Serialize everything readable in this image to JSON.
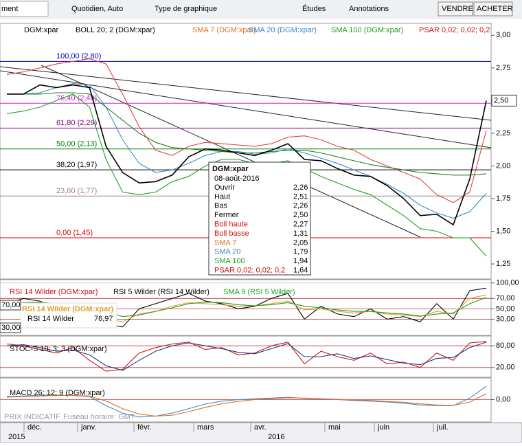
{
  "toolbar": {
    "search": "ment",
    "period": "Quotidien, Auto",
    "chart_type": "Type de graphique",
    "studies": "Études",
    "annotations": "Annotations",
    "sell": "VENDRE",
    "buy": "ACHETER"
  },
  "price_panel": {
    "legend": [
      {
        "text": "DGM:xpar",
        "color": "#000000"
      },
      {
        "text": "BOLL 20; 2 (DGM:xpar)",
        "color": "#000000"
      },
      {
        "text": "SMA 7 (DGM:xpar)",
        "color": "#e07020"
      },
      {
        "text": "SMA 20 (DGM:xpar)",
        "color": "#3a8ad0"
      },
      {
        "text": "SMA 100 (DGM:xpar)",
        "color": "#20a020"
      },
      {
        "text": "PSAR 0,02; 0,02; 0,2",
        "color": "#d01010"
      }
    ],
    "ylim": [
      1.14,
      3.07
    ],
    "yticks": [
      {
        "value": 3,
        "label": "3,00"
      },
      {
        "value": 2.75,
        "label": "2,75"
      },
      {
        "value": 2.5,
        "label": "2,50"
      },
      {
        "value": 2.25,
        "label": "2,25"
      },
      {
        "value": 2,
        "label": "2,00"
      },
      {
        "value": 1.75,
        "label": "1,75"
      },
      {
        "value": 1.5,
        "label": "1,50"
      },
      {
        "value": 1.25,
        "label": "1,25"
      }
    ],
    "last_price": {
      "value": 2.5,
      "label": "2,50"
    },
    "fib_levels": [
      {
        "label": "100,00 (2,80)",
        "value": 2.8,
        "color": "#0000c0"
      },
      {
        "label": "76,40 (2,48)",
        "value": 2.48,
        "color": "#d020d0"
      },
      {
        "label": "61,80 (2,29)",
        "value": 2.29,
        "color": "#800080"
      },
      {
        "label": "50,00 (2,13)",
        "value": 2.13,
        "color": "#008000"
      },
      {
        "label": "38,20 (1,97)",
        "value": 1.97,
        "color": "#000000"
      },
      {
        "label": "23,60 (1,77)",
        "value": 1.77,
        "color": "#a08080"
      },
      {
        "label": "0,00 (1,45)",
        "value": 1.45,
        "color": "#d00000"
      }
    ],
    "series": [
      {
        "color": "#e04040",
        "values": [
          2.7,
          2.72,
          2.75,
          2.78,
          2.8,
          2.82,
          2.78,
          2.55,
          2.3,
          2.12,
          2.08,
          2.15,
          2.18,
          2.17,
          2.16,
          2.15,
          2.17,
          2.22,
          2.23,
          2.2,
          2.15,
          2.12,
          2.05,
          2.0,
          1.95,
          1.9,
          1.78,
          1.72,
          1.8,
          2.27
        ]
      },
      {
        "color": "#20a020",
        "values": [
          2.4,
          2.42,
          2.45,
          2.5,
          2.55,
          2.45,
          2.05,
          1.8,
          1.78,
          1.8,
          1.88,
          1.92,
          2.0,
          2.05,
          2.05,
          2.02,
          2.02,
          2.04,
          1.98,
          1.92,
          1.87,
          1.82,
          1.78,
          1.7,
          1.62,
          1.52,
          1.5,
          1.45,
          1.45,
          1.31
        ]
      },
      {
        "color": "#3a8ad0",
        "values": [
          2.55,
          2.55,
          2.56,
          2.6,
          2.63,
          2.62,
          2.45,
          2.2,
          2.02,
          1.95,
          1.97,
          2.02,
          2.08,
          2.11,
          2.11,
          2.09,
          2.1,
          2.13,
          2.1,
          2.06,
          2.02,
          1.97,
          1.92,
          1.86,
          1.79,
          1.7,
          1.64,
          1.6,
          1.65,
          1.79
        ]
      },
      {
        "color": "#208020",
        "values": [
          2.55,
          2.55,
          2.55,
          2.56,
          2.56,
          2.55,
          2.45,
          2.35,
          2.25,
          2.18,
          2.14,
          2.13,
          2.12,
          2.11,
          2.1,
          2.1,
          2.11,
          2.12,
          2.12,
          2.1,
          2.07,
          2.04,
          2.01,
          1.99,
          1.97,
          1.95,
          1.94,
          1.93,
          1.93,
          1.94
        ]
      },
      {
        "color": "#000000",
        "values": [
          2.55,
          2.55,
          2.62,
          2.6,
          2.62,
          2.6,
          2.15,
          1.95,
          1.87,
          1.88,
          1.93,
          2.07,
          2.13,
          2.12,
          2.1,
          2.08,
          2.12,
          2.17,
          2.05,
          2.04,
          1.98,
          1.93,
          1.92,
          1.85,
          1.75,
          1.62,
          1.63,
          1.55,
          1.9,
          2.5
        ]
      }
    ]
  },
  "tooltip": {
    "title": "DGM:xpar",
    "date": "08-août-2016",
    "rows": [
      {
        "label": "Ouvrir",
        "value": "2,26",
        "color": "#000000"
      },
      {
        "label": "Haut",
        "value": "2,51",
        "color": "#000000"
      },
      {
        "label": "Bas",
        "value": "2,26",
        "color": "#000000"
      },
      {
        "label": "Fermer",
        "value": "2,50",
        "color": "#000000"
      },
      {
        "label": "Boll haute",
        "value": "2,27",
        "color": "#d01010"
      },
      {
        "label": "Boll basse",
        "value": "1,31",
        "color": "#d01010"
      },
      {
        "label": "SMA 7",
        "value": "2,05",
        "color": "#e07020"
      },
      {
        "label": "SMA 20",
        "value": "1,79",
        "color": "#3a8ad0"
      },
      {
        "label": "SMA 100",
        "value": "1,94",
        "color": "#20a020"
      },
      {
        "label": "PSAR 0,02; 0,02; 0,2",
        "value": "1,64",
        "color": "#d01010"
      }
    ]
  },
  "rsi_panel": {
    "legend": [
      {
        "text": "RSI 14 Wilder (DGM:xpar)",
        "color": "#d01010"
      },
      {
        "text": "RSI 5 Wilder (RSI 14 Wilder)",
        "color": "#000000"
      },
      {
        "text": "SMA 9 (RSI 5 Wilder)",
        "color": "#20a020"
      }
    ],
    "overlay": {
      "title": "RSI 14 Wilder (DGM:xpar)",
      "name": "RSI 14 Wilder",
      "value": "76,97"
    },
    "left_labels": [
      "70,00",
      "30,00"
    ],
    "ylim": [
      0,
      105
    ],
    "yticks": [
      {
        "value": 100,
        "label": "100,00"
      },
      {
        "value": 70,
        "label": "70,00"
      },
      {
        "value": 50,
        "label": "50,00"
      },
      {
        "value": 30,
        "label": "30,00"
      }
    ],
    "series": [
      {
        "color": "#000000",
        "values": [
          60,
          70,
          65,
          50,
          60,
          45,
          20,
          15,
          50,
          60,
          70,
          80,
          65,
          60,
          50,
          55,
          70,
          80,
          30,
          55,
          40,
          35,
          50,
          30,
          35,
          25,
          60,
          30,
          85,
          90
        ]
      },
      {
        "color": "#e0a030",
        "values": [
          55,
          60,
          62,
          58,
          55,
          50,
          30,
          25,
          40,
          45,
          55,
          62,
          60,
          58,
          55,
          56,
          60,
          65,
          48,
          50,
          45,
          42,
          45,
          40,
          38,
          35,
          45,
          40,
          70,
          77
        ]
      },
      {
        "color": "#20a020",
        "values": [
          58,
          62,
          63,
          60,
          58,
          54,
          45,
          35,
          38,
          45,
          52,
          60,
          63,
          62,
          58,
          56,
          58,
          62,
          55,
          52,
          48,
          45,
          45,
          42,
          40,
          36,
          40,
          42,
          60,
          72
        ]
      }
    ]
  },
  "stoch_panel": {
    "legend": [
      {
        "text": "STOC-S 10; 3; 3 (DGM:xpar)",
        "color": "#000000"
      }
    ],
    "ylim": [
      -5,
      105
    ],
    "yticks": [
      {
        "value": 80,
        "label": "80,00"
      },
      {
        "value": 20,
        "label": "20,00"
      }
    ],
    "series": [
      {
        "color": "#d01010",
        "values": [
          85,
          80,
          70,
          60,
          75,
          40,
          10,
          15,
          60,
          75,
          85,
          90,
          70,
          75,
          55,
          60,
          80,
          90,
          30,
          65,
          50,
          40,
          60,
          30,
          35,
          20,
          60,
          40,
          88,
          92
        ]
      },
      {
        "color": "#1a3a80",
        "values": [
          80,
          83,
          75,
          65,
          68,
          55,
          25,
          12,
          40,
          65,
          80,
          88,
          80,
          72,
          62,
          58,
          72,
          86,
          50,
          50,
          58,
          45,
          52,
          42,
          32,
          28,
          45,
          48,
          75,
          90
        ]
      }
    ]
  },
  "macd_panel": {
    "legend": [
      {
        "text": "MACD 26; 12; 9 (DGM:xpar)",
        "color": "#000000"
      }
    ],
    "ylim": [
      -0.07,
      0.07
    ],
    "yticks": [
      {
        "value": 0,
        "label": "0,00"
      }
    ],
    "series": [
      {
        "color": "#3a8ad0",
        "values": [
          0.01,
          0.012,
          0.015,
          0.015,
          0.014,
          0.01,
          -0.02,
          -0.045,
          -0.058,
          -0.055,
          -0.045,
          -0.03,
          -0.015,
          -0.005,
          0.0,
          0.003,
          0.005,
          0.008,
          0.004,
          0.002,
          0.0,
          -0.003,
          -0.005,
          -0.008,
          -0.012,
          -0.018,
          -0.02,
          -0.02,
          0.005,
          0.045
        ]
      },
      {
        "color": "#e07020",
        "values": [
          0.008,
          0.01,
          0.012,
          0.014,
          0.014,
          0.012,
          -0.005,
          -0.03,
          -0.048,
          -0.055,
          -0.052,
          -0.04,
          -0.026,
          -0.014,
          -0.006,
          0.0,
          0.003,
          0.006,
          0.005,
          0.003,
          0.001,
          -0.001,
          -0.003,
          -0.006,
          -0.009,
          -0.014,
          -0.018,
          -0.019,
          -0.008,
          0.02
        ]
      }
    ]
  },
  "x_axis": {
    "months": [
      "déc.",
      "janv.",
      "févr.",
      "mars",
      "avr.",
      "mai",
      "juin",
      "juil."
    ],
    "years": [
      "2015",
      "2016"
    ]
  },
  "footer": {
    "indicative": "PRIX INDICATIF",
    "timezone": "Fuseau horaire: GMT"
  }
}
